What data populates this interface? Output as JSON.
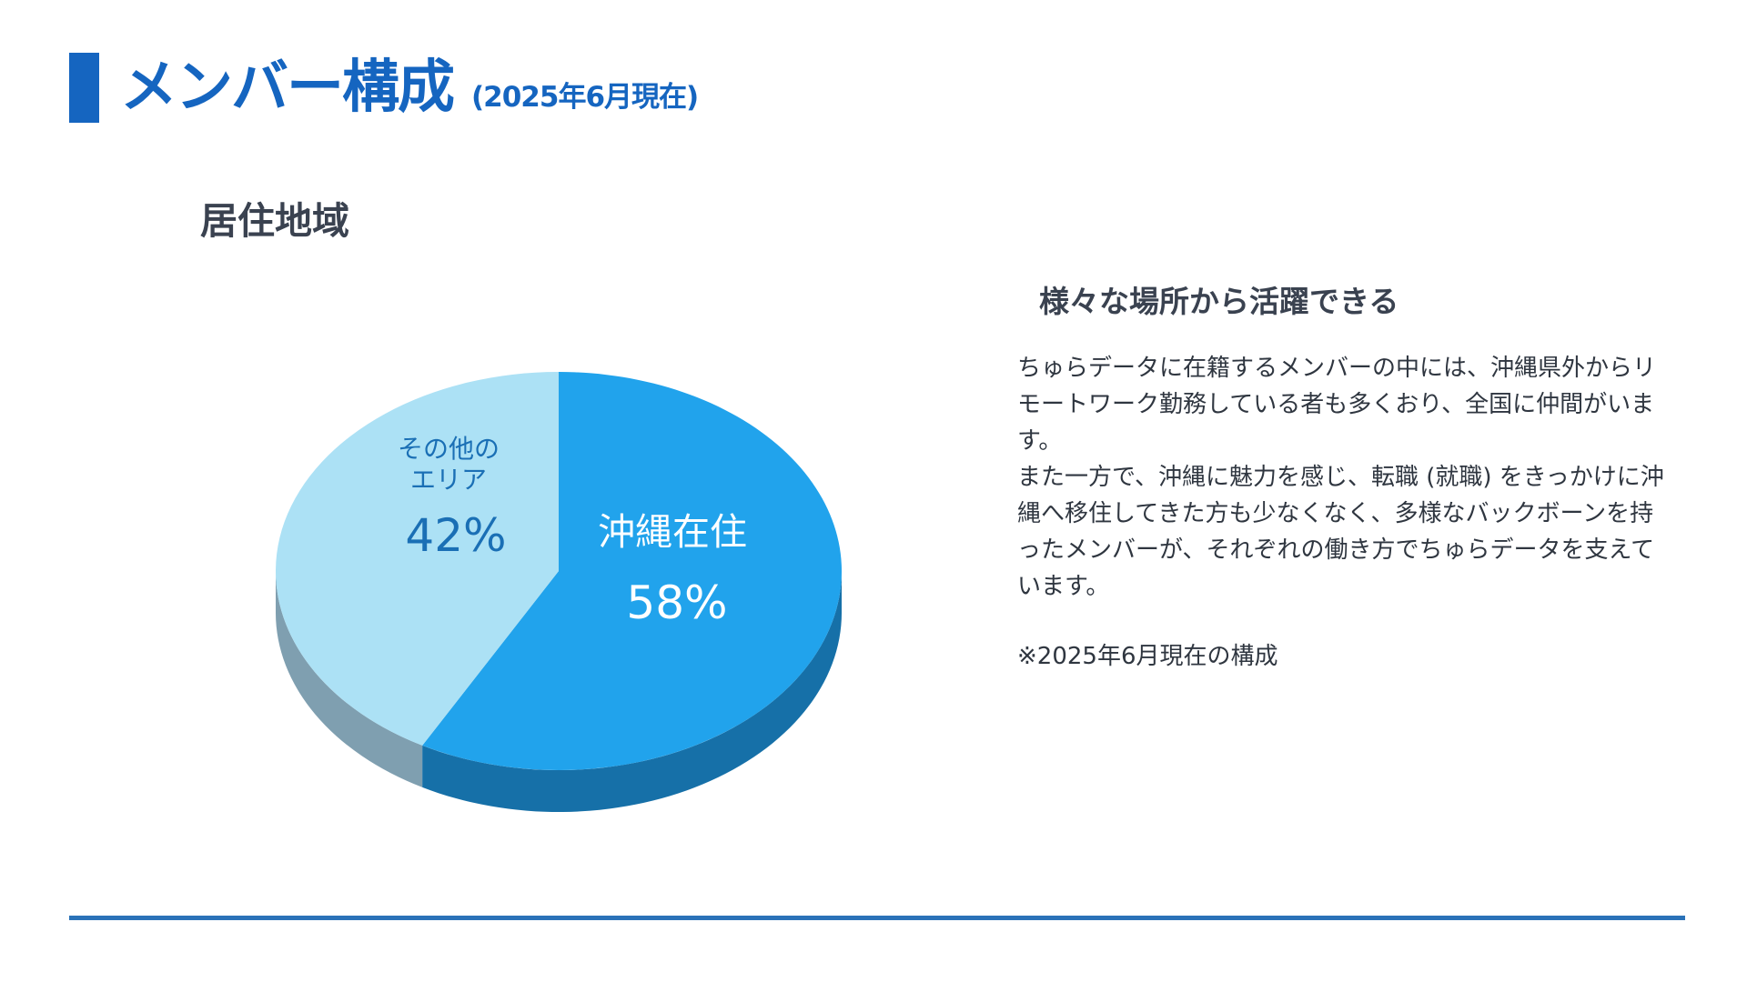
{
  "slide": {
    "title": "メンバー構成",
    "title_sub": "(2025年6月現在)",
    "section_label": "居住地域",
    "accent_color": "#1565c0"
  },
  "chart_data": {
    "type": "pie",
    "style": "3d",
    "slices": [
      {
        "label": "沖縄在住",
        "value": 58,
        "display": "58%",
        "color": "#21a3ec",
        "side_color": "#1670a8"
      },
      {
        "label_line1": "その他の",
        "label_line2": "エリア",
        "value": 42,
        "display": "42%",
        "color": "#ace1f5",
        "side_color": "#7f9fb0"
      }
    ]
  },
  "text_panel": {
    "heading": "様々な場所から活躍できる",
    "paragraphs": [
      "ちゅらデータに在籍するメンバーの中には、沖縄県外からリモートワーク勤務している者も多くおり、全国に仲間がいます。",
      "また一方で、沖縄に魅力を感じ、転職 (就職) をきっかけに沖縄へ移住してきた方も少なくなく、多様なバックボーンを持ったメンバーが、それぞれの働き方でちゅらデータを支えています。"
    ],
    "note": "※2025年6月現在の構成"
  }
}
